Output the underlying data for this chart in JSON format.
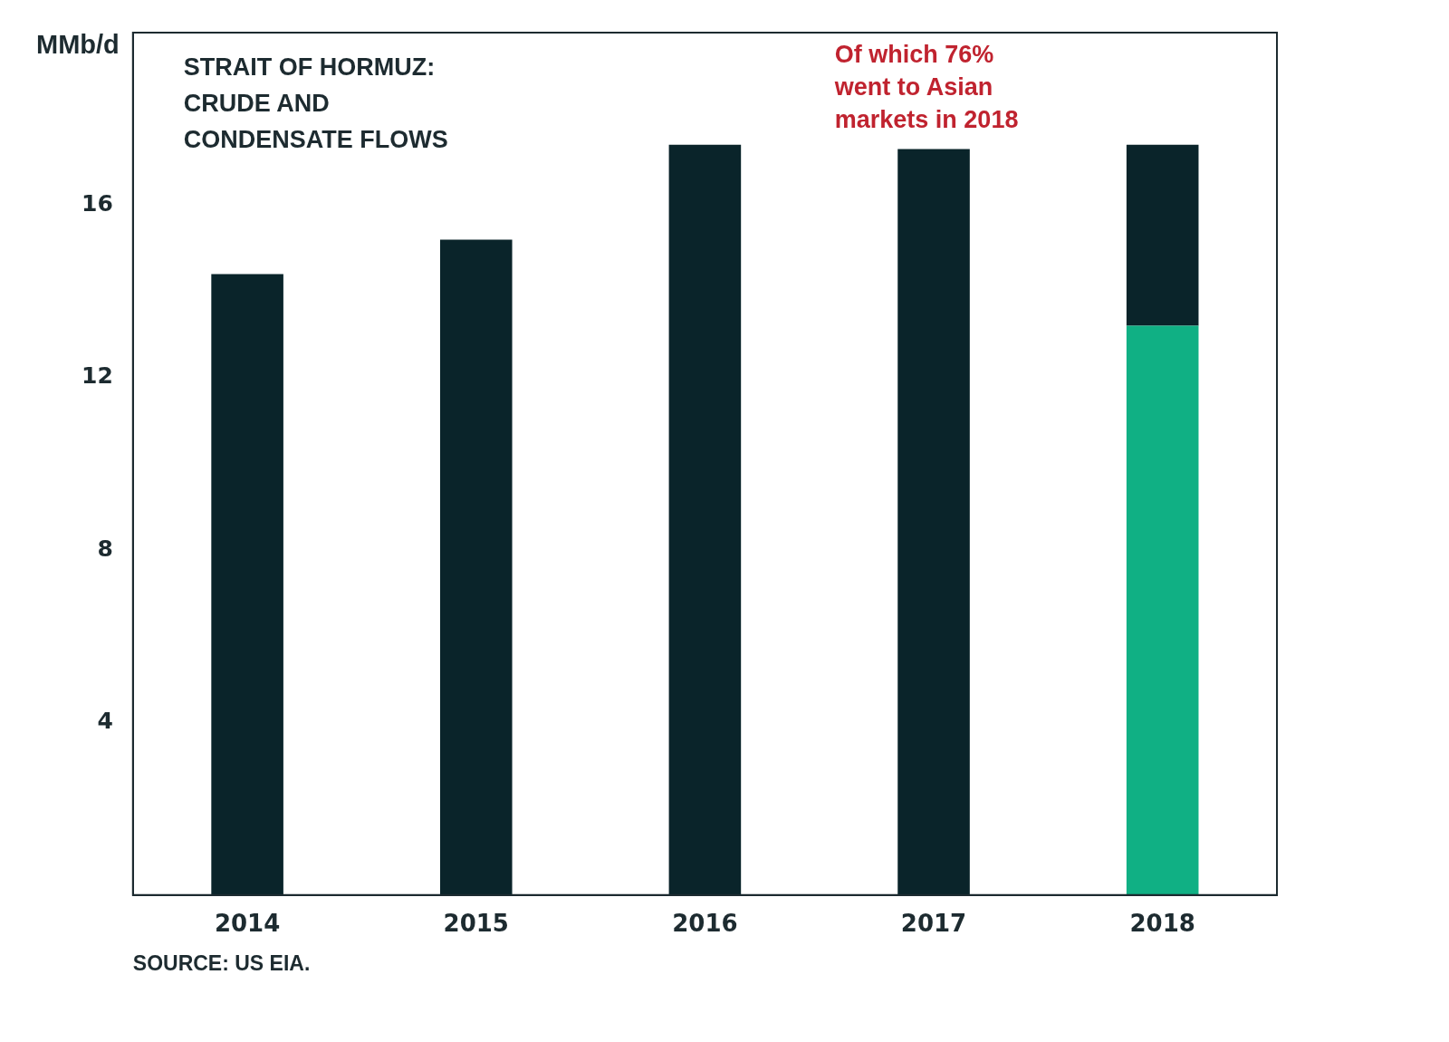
{
  "chart_data": {
    "type": "bar",
    "title": "STRAIT OF HORMUZ:\nCRUDE AND\nCONDENSATE FLOWS",
    "ylabel": "MMb/d",
    "categories": [
      "2014",
      "2015",
      "2016",
      "2017",
      "2018"
    ],
    "stacked": true,
    "series": [
      {
        "color": "#10b084",
        "values": [
          null,
          null,
          null,
          null,
          13.2
        ]
      },
      {
        "color": "#0a242a",
        "values": [
          14.4,
          15.2,
          17.4,
          17.3,
          4.2
        ]
      }
    ],
    "ylim": [
      0,
      20
    ],
    "yticks": [
      4,
      8,
      12,
      16
    ],
    "grid": false,
    "legend": false,
    "annotations": [
      "Of which 76%\nwent to Asian\nmarkets in 2018",
      "SOURCE: US EIA."
    ]
  }
}
